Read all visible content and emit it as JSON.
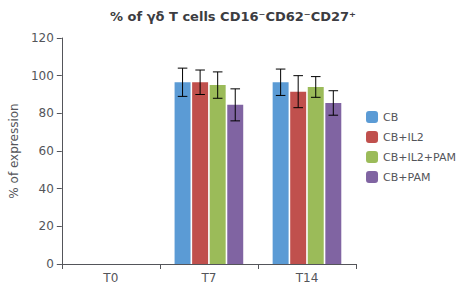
{
  "chart_data": {
    "type": "bar",
    "title": "% of γδ T cells CD16⁻CD62⁻CD27⁺",
    "ylabel": "% of expression",
    "categories": [
      "T0",
      "T7",
      "T14"
    ],
    "series": [
      {
        "name": "CB",
        "color": "#5B9BD5",
        "values": [
          0,
          96.5,
          96.5
        ],
        "errors": [
          0,
          7.5,
          7.0
        ]
      },
      {
        "name": "CB+IL2",
        "color": "#C0504D",
        "values": [
          0,
          96.5,
          91.5
        ],
        "errors": [
          0,
          6.5,
          8.5
        ]
      },
      {
        "name": "CB+IL2+PAM",
        "color": "#9BBB59",
        "values": [
          0,
          95.0,
          94.0
        ],
        "errors": [
          0,
          7.0,
          5.5
        ]
      },
      {
        "name": "CB+PAM",
        "color": "#8064A2",
        "values": [
          0,
          84.5,
          85.5
        ],
        "errors": [
          0,
          8.5,
          6.5
        ]
      }
    ],
    "ylim": [
      0,
      120
    ],
    "yticks": [
      0,
      20,
      40,
      60,
      80,
      100,
      120
    ],
    "grid": false,
    "legend": "right"
  }
}
